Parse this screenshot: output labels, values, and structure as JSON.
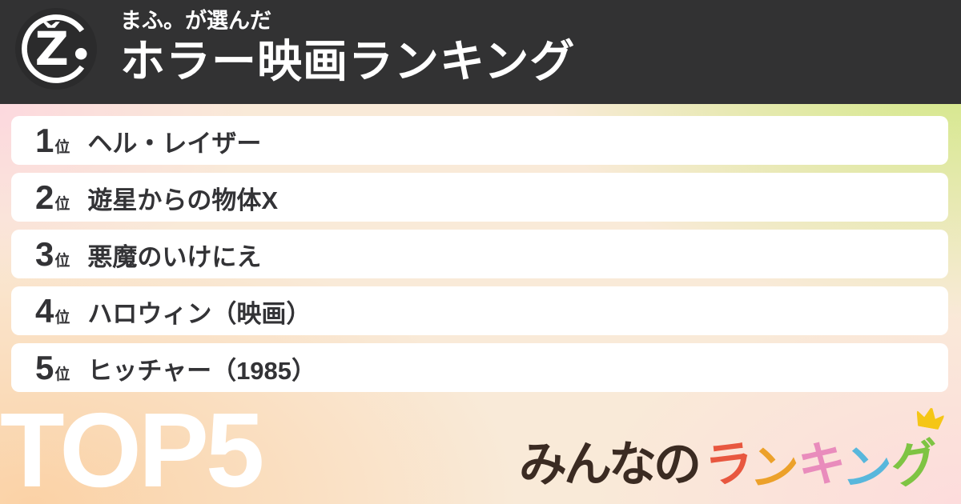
{
  "header": {
    "chooser": "まふ。が選んだ",
    "title": "ホラー映画ランキング",
    "bg_color": "#323233",
    "avatar": {
      "glyph": "Ž"
    }
  },
  "ranking": {
    "rank_suffix": "位",
    "items": [
      {
        "rank": "1",
        "title": "ヘル・レイザー"
      },
      {
        "rank": "2",
        "title": "遊星からの物体X"
      },
      {
        "rank": "3",
        "title": "悪魔のいけにえ"
      },
      {
        "rank": "4",
        "title": "ハロウィン（映画）"
      },
      {
        "rank": "5",
        "title": "ヒッチャー（1985）"
      }
    ]
  },
  "footer": {
    "top_label": "TOP5",
    "logo": {
      "prefix": "みんなの",
      "prefix_color": "#3b2b22",
      "colored_chars": [
        {
          "char": "ラ",
          "color": "#e8573f"
        },
        {
          "char": "ン",
          "color": "#eca12a"
        },
        {
          "char": "キ",
          "color": "#e98cbc"
        },
        {
          "char": "ン",
          "color": "#58b7dc"
        },
        {
          "char": "グ",
          "color": "#7ec443"
        }
      ],
      "crown_color": "#f5c616"
    }
  },
  "background": {
    "top_left": "#fcdade",
    "top_right": "#cfe87f",
    "bottom_left": "#fddcbc",
    "bottom_right": "#fddcdc",
    "center": "#f9ead8"
  }
}
